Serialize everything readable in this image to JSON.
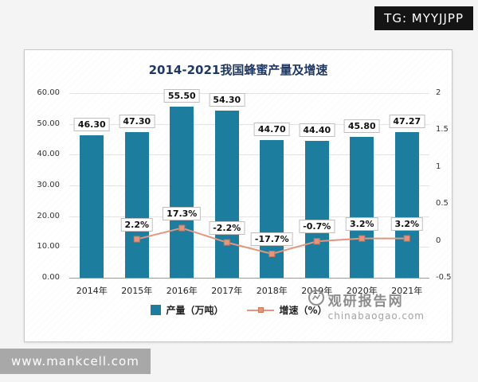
{
  "overlays": {
    "tg_badge": "TG: MYYJJPP",
    "site_badge": "www.mankcell.com"
  },
  "watermark": {
    "name": "观研报告网",
    "domain": "chinabaogao.com"
  },
  "chart_data": {
    "type": "bar+line",
    "title": "2014-2021我国蜂蜜产量及增速",
    "categories": [
      "2014年",
      "2015年",
      "2016年",
      "2017年",
      "2018年",
      "2019年",
      "2020年",
      "2021年"
    ],
    "series": [
      {
        "name": "产量（万吨）",
        "type": "bar",
        "axis": "left",
        "color": "#1d7d9e",
        "values": [
          46.3,
          47.3,
          55.5,
          54.3,
          44.7,
          44.4,
          45.8,
          47.27
        ],
        "labels": [
          "46.30",
          "47.30",
          "55.50",
          "54.30",
          "44.70",
          "44.40",
          "45.80",
          "47.27"
        ]
      },
      {
        "name": "增速（%）",
        "type": "line",
        "axis": "right",
        "color": "#e29680",
        "values": [
          null,
          2.2,
          17.3,
          -2.2,
          -17.7,
          -0.7,
          3.2,
          3.2
        ],
        "labels": [
          "",
          "2.2%",
          "17.3%",
          "-2.2%",
          "-17.7%",
          "-0.7%",
          "3.2%",
          "3.2%"
        ]
      }
    ],
    "left_axis": {
      "min": 0,
      "max": 60,
      "ticks": [
        "60.00",
        "50.00",
        "40.00",
        "30.00",
        "20.00",
        "10.00",
        "0.00"
      ]
    },
    "right_axis": {
      "min": -0.5,
      "max": 2,
      "ticks": [
        "2",
        "1.5",
        "1",
        "0.5",
        "0",
        "-0.5"
      ]
    },
    "colors": {
      "title": "#1f3864",
      "grid": "#e3e3e3"
    },
    "legend_position": "bottom"
  }
}
